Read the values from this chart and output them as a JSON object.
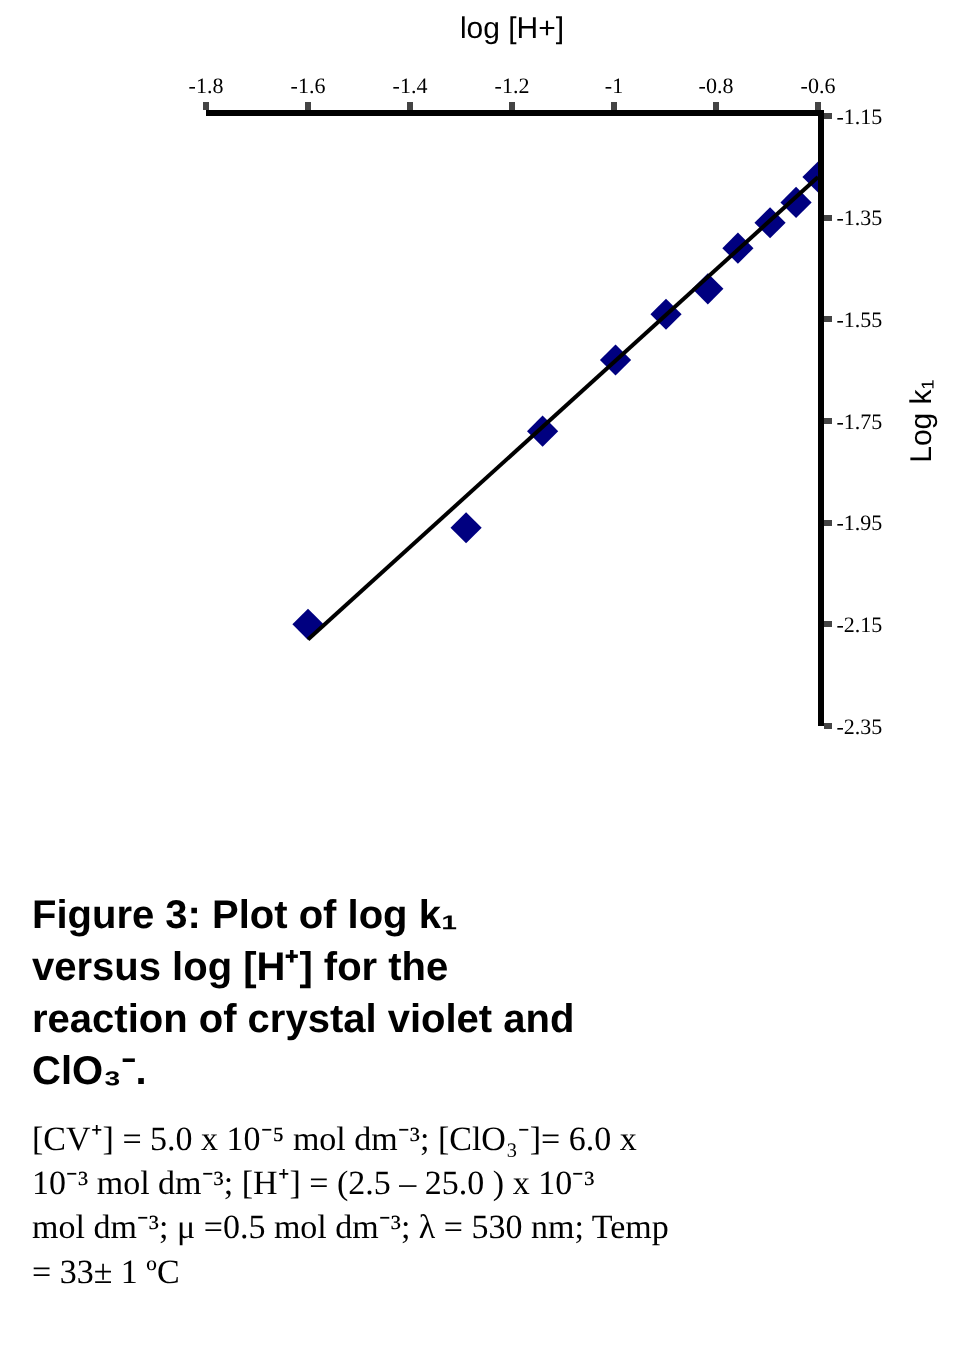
{
  "chart_data": {
    "type": "scatter",
    "title": "Figure 3: Plot of log k₁ versus log [H⁺] for the reaction of crystal violet and ClO₃⁻.",
    "xlabel": "log [H+]",
    "ylabel": "Log k₁",
    "xlim": [
      -1.8,
      -0.6
    ],
    "xticks": [
      -1.8,
      -1.6,
      -1.4,
      -1.2,
      -1,
      -0.8,
      -0.6
    ],
    "ylim": [
      -2.35,
      -1.15
    ],
    "yticks": [
      -2.35,
      -2.15,
      -1.95,
      -1.75,
      -1.55,
      -1.35,
      -1.15
    ],
    "marker": "diamond",
    "series": [
      {
        "color": "#000080",
        "x": [
          -1.6,
          -1.29,
          -1.14,
          -0.997,
          -0.898,
          -0.816,
          -0.757,
          -0.694,
          -0.643,
          -0.6
        ],
        "values": [
          -2.15,
          -1.96,
          -1.77,
          -1.63,
          -1.54,
          -1.49,
          -1.41,
          -1.36,
          -1.32,
          -1.27
        ]
      },
      {
        "type": "line",
        "marker": "none",
        "line_style": "solid",
        "color": "#000000",
        "x": [
          -1.6,
          -0.6
        ],
        "values": [
          -2.18,
          -1.27
        ]
      }
    ],
    "annotations": [
      "[CV⁺] = 5.0 x 10⁻⁵ mol dm⁻³; [ClO₃⁻]= 6.0 x 10⁻³ mol dm⁻³; [H⁺] = (2.5 – 25.0 ) x 10⁻³ mol dm⁻³; μ =0.5 mol dm⁻³; λ = 530 nm; Temp = 33± 1 ºC"
    ]
  }
}
